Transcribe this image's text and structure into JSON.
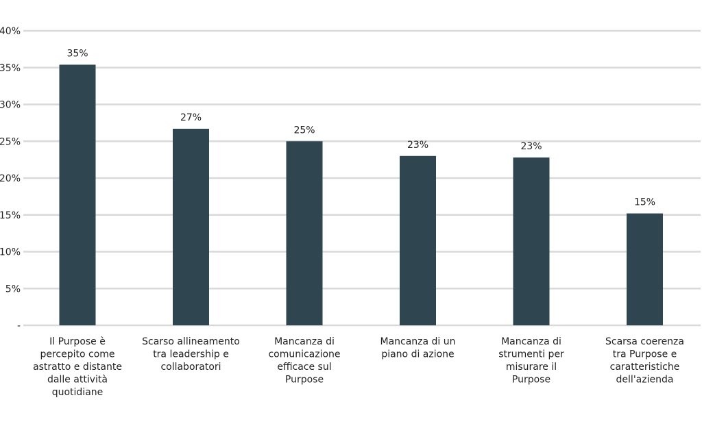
{
  "chart_data": {
    "type": "bar",
    "title": "",
    "xlabel": "",
    "ylabel": "",
    "ylim": [
      0,
      40
    ],
    "grid": true,
    "y_ticks": [
      {
        "value": 0,
        "label": "-"
      },
      {
        "value": 5,
        "label": "5%"
      },
      {
        "value": 10,
        "label": "10%"
      },
      {
        "value": 15,
        "label": "15%"
      },
      {
        "value": 20,
        "label": "20%"
      },
      {
        "value": 25,
        "label": "25%"
      },
      {
        "value": 30,
        "label": "30%"
      },
      {
        "value": 35,
        "label": "35%"
      },
      {
        "value": 40,
        "label": "40%"
      }
    ],
    "bar_color": "#2f4550",
    "categories": [
      [
        "Il Purpose è",
        "percepito come",
        "astratto e distante",
        "dalle attività",
        "quotidiane"
      ],
      [
        "Scarso allineamento",
        "tra leadership e",
        "collaboratori"
      ],
      [
        "Mancanza di",
        "comunicazione",
        "efficace sul",
        "Purpose"
      ],
      [
        "Mancanza di un",
        "piano di azione"
      ],
      [
        "Mancanza di",
        "strumenti per",
        "misurare il",
        "Purpose"
      ],
      [
        "Scarsa coerenza",
        "tra Purpose e",
        "caratteristiche",
        "dell'azienda"
      ]
    ],
    "values": [
      35.4,
      26.7,
      25.0,
      23.0,
      22.8,
      15.2
    ],
    "data_labels": [
      "35%",
      "27%",
      "25%",
      "23%",
      "23%",
      "15%"
    ]
  }
}
